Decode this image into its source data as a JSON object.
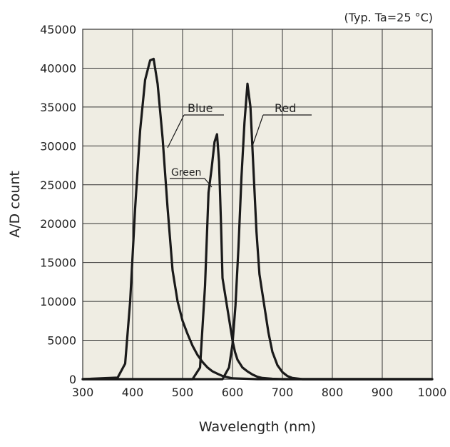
{
  "chart_data": {
    "type": "line",
    "annotation": "(Typ. Ta=25 °C)",
    "xlabel": "Wavelength (nm)",
    "ylabel": "A/D count",
    "xlim": [
      300,
      1000
    ],
    "ylim": [
      0,
      45000
    ],
    "x_ticks": [
      300,
      400,
      500,
      600,
      700,
      800,
      900,
      1000
    ],
    "y_ticks": [
      0,
      5000,
      10000,
      15000,
      20000,
      25000,
      30000,
      35000,
      40000,
      45000
    ],
    "grid": true,
    "background": "#efede3",
    "line_color": "#1a1a1a",
    "series": [
      {
        "name": "Blue",
        "x": [
          300,
          370,
          385,
          395,
          405,
          415,
          425,
          435,
          442,
          450,
          460,
          470,
          480,
          490,
          500,
          510,
          520,
          530,
          540,
          550,
          560,
          570,
          580,
          600,
          650,
          1000
        ],
        "y": [
          0,
          200,
          2000,
          10000,
          22000,
          32000,
          38500,
          41000,
          41200,
          38000,
          31000,
          22000,
          14000,
          10000,
          7500,
          5800,
          4300,
          3100,
          2200,
          1500,
          1000,
          700,
          400,
          100,
          0,
          0
        ]
      },
      {
        "name": "Green",
        "x": [
          300,
          520,
          535,
          545,
          552,
          558,
          564,
          569,
          573,
          577,
          580,
          585,
          590,
          595,
          600,
          605,
          610,
          620,
          630,
          640,
          650,
          660,
          680,
          700,
          1000
        ],
        "y": [
          0,
          0,
          1500,
          12000,
          24000,
          27000,
          30500,
          31500,
          28000,
          20000,
          13000,
          11000,
          9000,
          7000,
          5000,
          3500,
          2500,
          1500,
          1000,
          600,
          300,
          150,
          50,
          0,
          0
        ]
      },
      {
        "name": "Red",
        "x": [
          300,
          580,
          593,
          600,
          606,
          612,
          618,
          624,
          630,
          636,
          642,
          648,
          654,
          660,
          666,
          672,
          680,
          690,
          700,
          710,
          720,
          740,
          1000
        ],
        "y": [
          0,
          0,
          1500,
          4500,
          9500,
          17000,
          26000,
          33000,
          38000,
          35000,
          27000,
          19000,
          13500,
          11000,
          8500,
          6000,
          3500,
          1800,
          900,
          400,
          150,
          0,
          0
        ]
      }
    ]
  }
}
